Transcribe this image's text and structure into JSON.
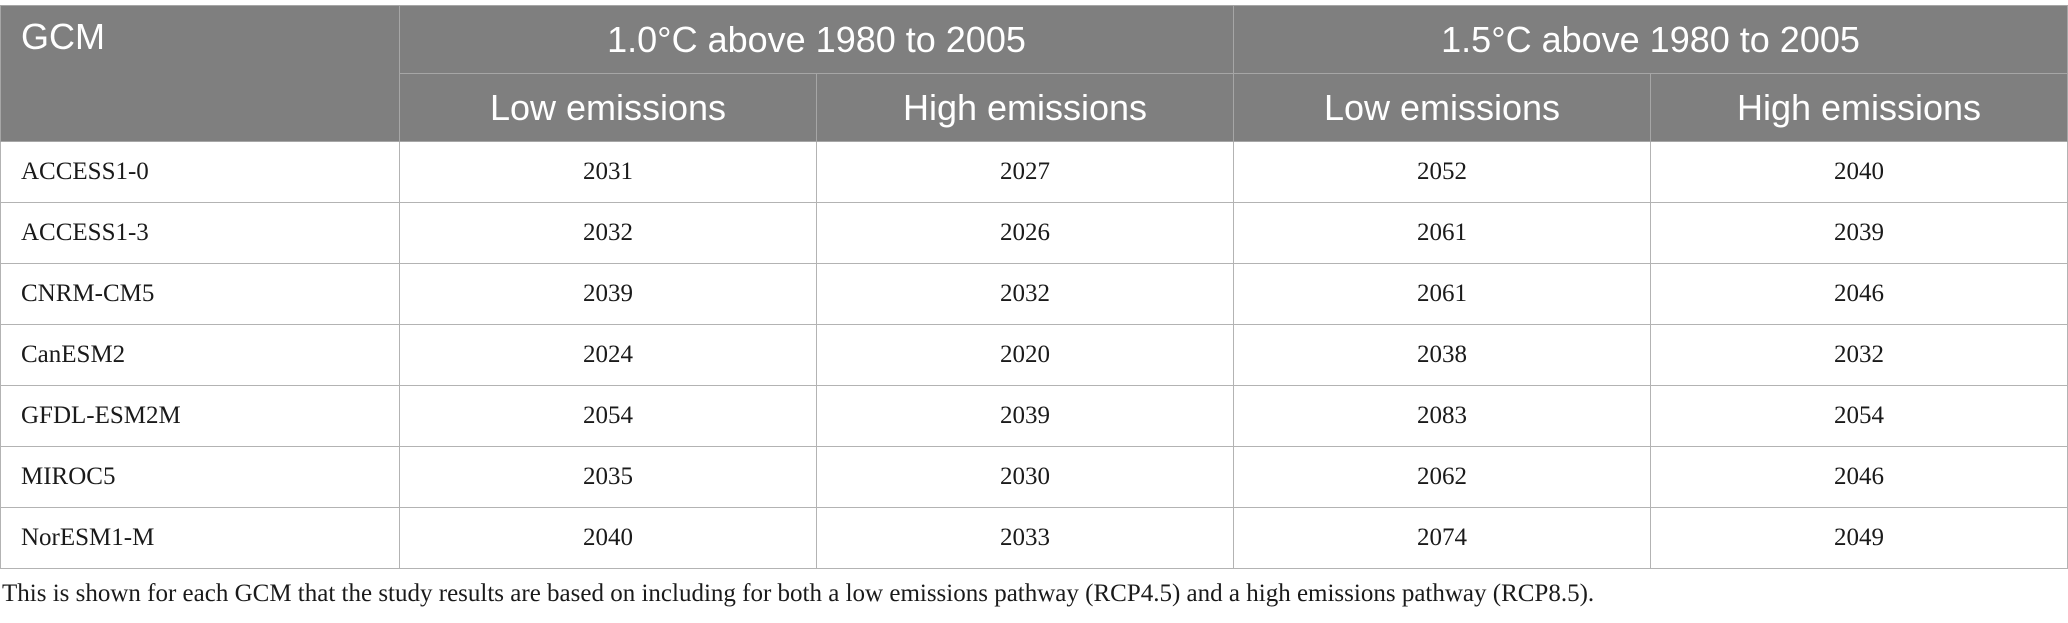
{
  "table": {
    "gcm_header": "GCM",
    "groups": [
      {
        "label": "1.0°C above 1980 to 2005",
        "low_label": "Low emissions",
        "high_label": "High emissions"
      },
      {
        "label": "1.5°C above 1980 to 2005",
        "low_label": "Low emissions",
        "high_label": "High emissions"
      }
    ],
    "rows": [
      {
        "gcm": "ACCESS1-0",
        "values": [
          "2031",
          "2027",
          "2052",
          "2040"
        ]
      },
      {
        "gcm": "ACCESS1-3",
        "values": [
          "2032",
          "2026",
          "2061",
          "2039"
        ]
      },
      {
        "gcm": "CNRM-CM5",
        "values": [
          "2039",
          "2032",
          "2061",
          "2046"
        ]
      },
      {
        "gcm": "CanESM2",
        "values": [
          "2024",
          "2020",
          "2038",
          "2032"
        ]
      },
      {
        "gcm": "GFDL-ESM2M",
        "values": [
          "2054",
          "2039",
          "2083",
          "2054"
        ]
      },
      {
        "gcm": "MIROC5",
        "values": [
          "2035",
          "2030",
          "2062",
          "2046"
        ]
      },
      {
        "gcm": "NorESM1-M",
        "values": [
          "2040",
          "2033",
          "2074",
          "2049"
        ]
      }
    ]
  },
  "footnote": "This is shown for each GCM that the study results are based on including for both a low emissions pathway (RCP4.5) and a high emissions pathway (RCP8.5).",
  "colors": {
    "header_background": "#7f7f7f",
    "header_text": "#ffffff",
    "grid_line": "#b3b3b3"
  }
}
